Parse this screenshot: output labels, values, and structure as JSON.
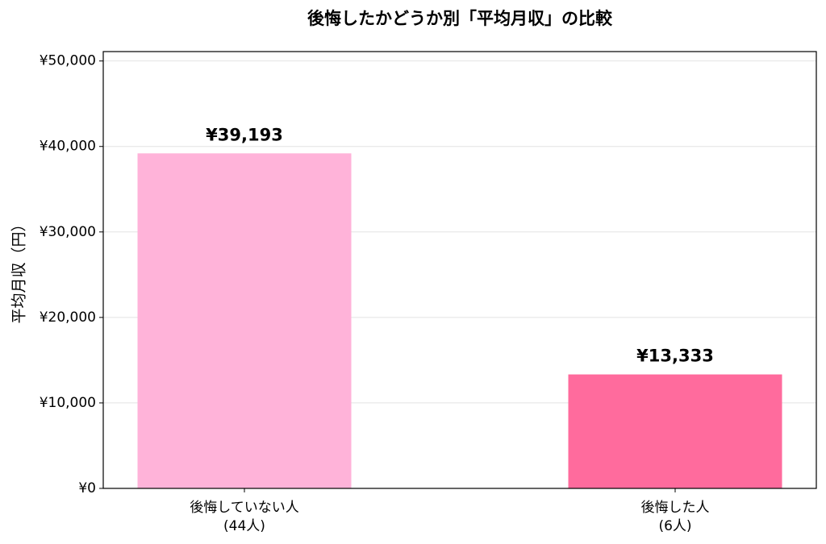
{
  "chart_data": {
    "type": "bar",
    "title": "後悔したかどうか別「平均月収」の比較",
    "y_label": "平均月収（円）",
    "categories": [
      [
        "後悔していない人",
        "(44人)"
      ],
      [
        "後悔した人",
        "(6人)"
      ]
    ],
    "values": [
      39193,
      13333
    ],
    "value_labels": [
      "¥39,193",
      "¥13,333"
    ],
    "colors": [
      "#ffb3d9",
      "#ff6b9d"
    ],
    "ylim": [
      0,
      51100
    ],
    "yticks": [
      {
        "value": 0,
        "label": "¥0"
      },
      {
        "value": 10000,
        "label": "¥10,000"
      },
      {
        "value": 20000,
        "label": "¥20,000"
      },
      {
        "value": 30000,
        "label": "¥30,000"
      },
      {
        "value": 40000,
        "label": "¥40,000"
      },
      {
        "value": 50000,
        "label": "¥50,000"
      }
    ],
    "grid": true
  }
}
